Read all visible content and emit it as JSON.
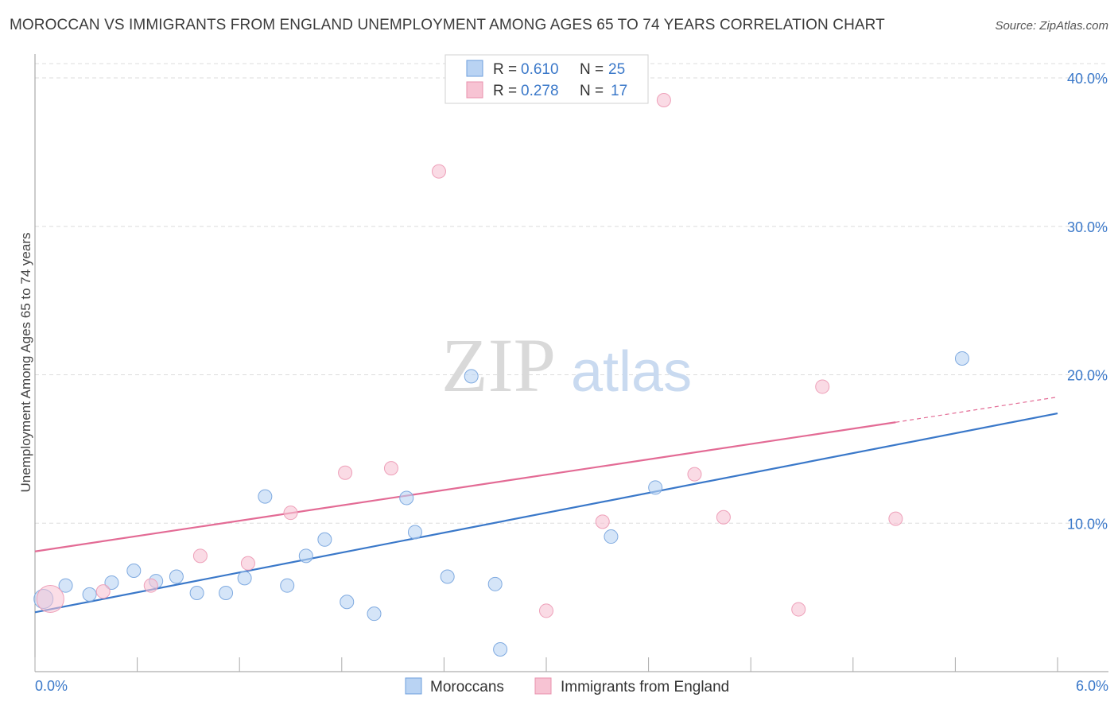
{
  "title": "MOROCCAN VS IMMIGRANTS FROM ENGLAND UNEMPLOYMENT AMONG AGES 65 TO 74 YEARS CORRELATION CHART",
  "source": "Source: ZipAtlas.com",
  "watermark": {
    "zip": "ZIP",
    "atlas": "atlas"
  },
  "legend": {
    "r_label": "R =",
    "n_label": "N =",
    "entries": [
      {
        "r": "0.610",
        "n": "25"
      },
      {
        "r": "0.278",
        "n": "17"
      }
    ]
  },
  "colors": {
    "blue": "#3a78c9",
    "blue_fill": "#b9d3f3",
    "pink": "#e36b95",
    "pink_fill": "#f7c3d3"
  },
  "chart_data": {
    "type": "scatter",
    "title": "MOROCCAN VS IMMIGRANTS FROM ENGLAND UNEMPLOYMENT AMONG AGES 65 TO 74 YEARS CORRELATION CHART",
    "xlabel": "",
    "ylabel": "Unemployment Among Ages 65 to 74 years",
    "xlim": [
      0,
      6
    ],
    "ylim": [
      0,
      40
    ],
    "x_tick_labels": [
      "0.0%",
      "6.0%"
    ],
    "y_ticks": [
      10,
      20,
      30,
      40
    ],
    "y_tick_labels": [
      "10.0%",
      "20.0%",
      "30.0%",
      "40.0%"
    ],
    "series": [
      {
        "name": "Moroccans",
        "points": [
          [
            0.05,
            4.9
          ],
          [
            0.18,
            5.8
          ],
          [
            0.32,
            5.2
          ],
          [
            0.45,
            6.0
          ],
          [
            0.58,
            6.8
          ],
          [
            0.71,
            6.1
          ],
          [
            0.83,
            6.4
          ],
          [
            0.95,
            5.3
          ],
          [
            1.12,
            5.3
          ],
          [
            1.23,
            6.3
          ],
          [
            1.35,
            11.8
          ],
          [
            1.48,
            5.8
          ],
          [
            1.59,
            7.8
          ],
          [
            1.7,
            8.9
          ],
          [
            1.83,
            4.7
          ],
          [
            1.99,
            3.9
          ],
          [
            2.18,
            11.7
          ],
          [
            2.23,
            9.4
          ],
          [
            2.42,
            6.4
          ],
          [
            2.56,
            19.9
          ],
          [
            2.7,
            5.9
          ],
          [
            2.73,
            1.5
          ],
          [
            3.38,
            9.1
          ],
          [
            3.64,
            12.4
          ],
          [
            5.44,
            21.1
          ]
        ],
        "trend": {
          "x": [
            0.0,
            6.0
          ],
          "y": [
            4.0,
            17.4
          ]
        }
      },
      {
        "name": "Immigrants from England",
        "points": [
          [
            0.09,
            4.9
          ],
          [
            0.4,
            5.4
          ],
          [
            0.68,
            5.8
          ],
          [
            0.97,
            7.8
          ],
          [
            1.25,
            7.3
          ],
          [
            1.5,
            10.7
          ],
          [
            1.82,
            13.4
          ],
          [
            2.09,
            13.7
          ],
          [
            2.37,
            33.7
          ],
          [
            3.0,
            4.1
          ],
          [
            3.33,
            10.1
          ],
          [
            3.69,
            38.5
          ],
          [
            3.87,
            13.3
          ],
          [
            4.04,
            10.4
          ],
          [
            4.48,
            4.2
          ],
          [
            4.62,
            19.2
          ],
          [
            5.05,
            10.3
          ]
        ],
        "trend": {
          "x": [
            0.0,
            5.05
          ],
          "y": [
            8.1,
            16.8
          ]
        },
        "trend_extension": {
          "x": [
            5.05,
            6.0
          ],
          "y": [
            16.8,
            18.5
          ]
        }
      }
    ]
  }
}
